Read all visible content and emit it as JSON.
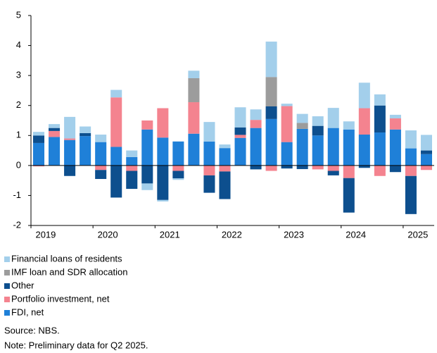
{
  "chart_data": {
    "type": "bar",
    "stacked": true,
    "categories": [
      "2019",
      null,
      null,
      null,
      "2020",
      null,
      null,
      null,
      "2021",
      null,
      null,
      null,
      "2022",
      null,
      null,
      null,
      "2023",
      null,
      null,
      null,
      "2024",
      null,
      null,
      null,
      "2025",
      null
    ],
    "series": [
      {
        "name": "Financial loans of residents",
        "color": "#a3cfeb",
        "values": [
          0.12,
          0.13,
          0.72,
          0.22,
          0.25,
          0.25,
          0.22,
          -0.22,
          -0.05,
          -0.05,
          0.25,
          0.65,
          0.12,
          0.67,
          0.35,
          1.18,
          0.08,
          0.3,
          0.32,
          0.67,
          0.27,
          0.85,
          0.37,
          0.12,
          0.6,
          0.52
        ]
      },
      {
        "name": "IMF loan and SDR allocation",
        "color": "#9c9c9c",
        "values": [
          0,
          0,
          0,
          0,
          0,
          0,
          0,
          0,
          0,
          0,
          0.8,
          0,
          0,
          0,
          0,
          0.98,
          0,
          0.2,
          0,
          0,
          0,
          0,
          0,
          0,
          0,
          0
        ]
      },
      {
        "name": "Other",
        "color": "#0d4f8e",
        "values": [
          0.25,
          0.1,
          -0.35,
          0.1,
          -0.3,
          -1.07,
          -0.6,
          -0.6,
          -1.15,
          -0.25,
          0,
          -0.58,
          -0.92,
          0.25,
          -0.13,
          0.42,
          -0.1,
          -0.12,
          0.32,
          -0.15,
          -1.15,
          -0.08,
          0.9,
          -0.22,
          -1.27,
          0.12
        ]
      },
      {
        "name": "Portfolio investment, net",
        "color": "#f4838f",
        "values": [
          -0.03,
          0.2,
          0.05,
          0,
          -0.15,
          1.65,
          -0.18,
          0.3,
          0.98,
          -0.18,
          1.05,
          -0.33,
          -0.2,
          0.1,
          0.27,
          -0.18,
          1.2,
          0,
          -0.13,
          -0.18,
          -0.42,
          0.88,
          -0.35,
          0.37,
          -0.35,
          -0.15
        ]
      },
      {
        "name": "FDI, net",
        "color": "#1f80d8",
        "values": [
          0.75,
          0.95,
          0.85,
          0.98,
          0.78,
          0.62,
          0.28,
          1.2,
          0.93,
          0.8,
          1.06,
          0.8,
          0.58,
          0.92,
          1.25,
          1.55,
          0.78,
          1.22,
          1.0,
          1.25,
          1.2,
          1.03,
          1.1,
          1.2,
          0.57,
          0.38
        ]
      }
    ],
    "ylim": [
      -2,
      5
    ],
    "yticks": [
      -2,
      -1,
      0,
      1,
      2,
      3,
      4,
      5
    ],
    "source": "Source: NBS.",
    "note": "Note: Preliminary data for Q2 2025."
  }
}
